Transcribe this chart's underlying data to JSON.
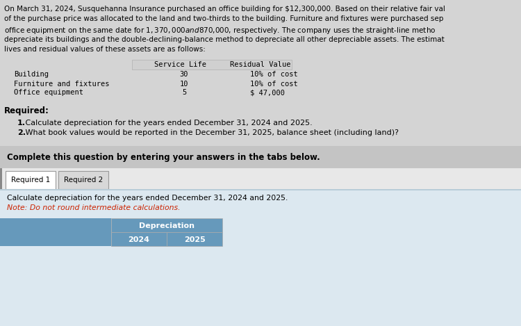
{
  "bg_color": "#d4d4d4",
  "white": "#ffffff",
  "light_gray_header": "#c8c8c8",
  "table_header_bg": "#d0d0d0",
  "blue_tab": "#6699bb",
  "blue_tab_dark": "#5588aa",
  "bottom_blue": "#dce8f0",
  "tab_area_bg": "#e8e8e8",
  "complete_bg": "#c4c4c4",
  "dark_text": "#000000",
  "red_text": "#cc2200",
  "paragraph_lines": [
    "On March 31, 2024, Susquehanna Insurance purchased an office building for $12,300,000. Based on their relative fair val",
    "of the purchase price was allocated to the land and two-thirds to the building. Furniture and fixtures were purchased sep",
    "office equipment on the same date for $1,370,000 and $870,000, respectively. The company uses the straight-line metho",
    "depreciate its buildings and the double-declining-balance method to depreciate all other depreciable assets. The estimat",
    "lives and residual values of these assets are as follows:"
  ],
  "table_col1": [
    "Building",
    "Furniture and fixtures",
    "Office equipment"
  ],
  "table_col2": [
    "30",
    "10",
    "5"
  ],
  "table_col3": [
    "10% of cost",
    "10% of cost",
    "$ 47,000"
  ],
  "table_header1": "Service Life",
  "table_header2": "Residual Value",
  "required_label": "Required:",
  "req1_bold": "1.",
  "req1_text": " Calculate depreciation for the years ended December 31, 2024 and 2025.",
  "req2_bold": "2.",
  "req2_text": " What book values would be reported in the December 31, 2025, balance sheet (including land)?",
  "complete_text": "Complete this question by entering your answers in the tabs below.",
  "tab1": "Required 1",
  "tab2": "Required 2",
  "calc_line1": "Calculate depreciation for the years ended December 31, 2024 and 2025.",
  "calc_line2": "Note: Do not round intermediate calculations.",
  "depr_header": "Depreciation",
  "col_2024": "2024",
  "col_2025": "2025"
}
